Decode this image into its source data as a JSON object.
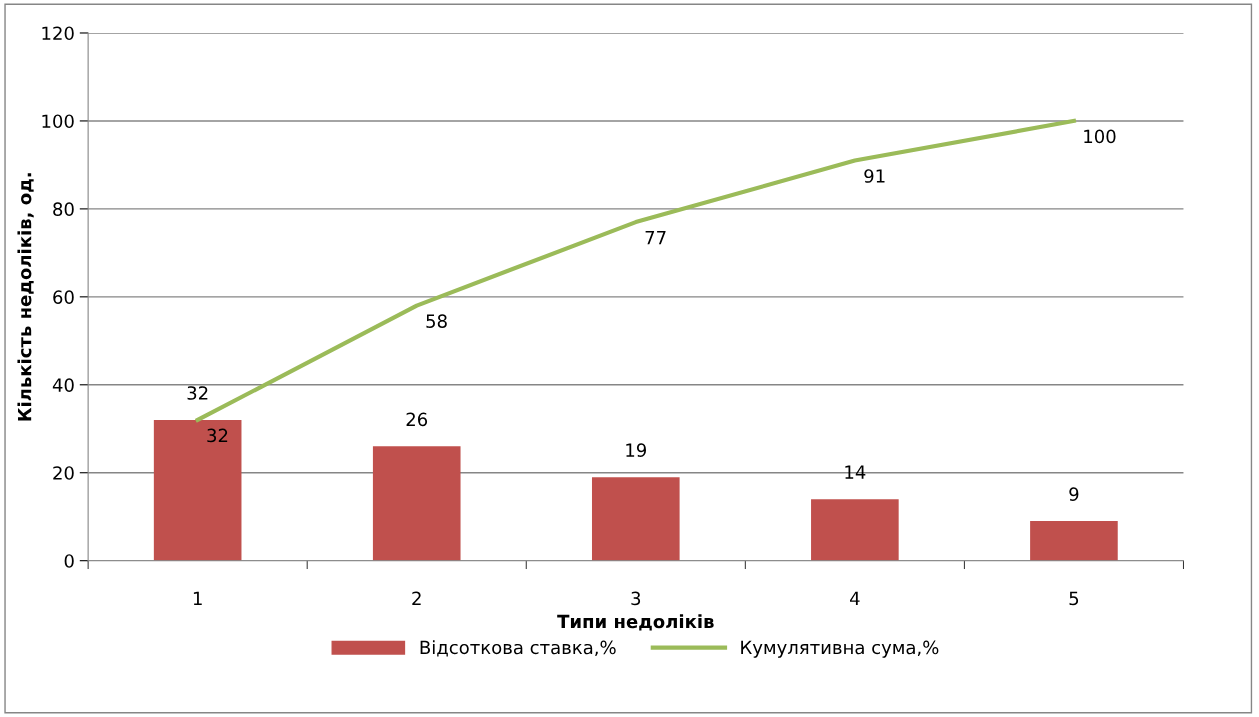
{
  "chart_data": {
    "type": "bar",
    "xlabel": "Типи недоліків",
    "ylabel": "Кількість недоліків, од.",
    "categories": [
      "1",
      "2",
      "3",
      "4",
      "5"
    ],
    "series": [
      {
        "name": "Відсоткова ставка,%",
        "color": "#c0504d",
        "values": [
          32,
          26,
          19,
          14,
          9
        ]
      },
      {
        "name": "Кумулятивна сума,%",
        "type": "line",
        "color": "#9bbb59",
        "values": [
          32,
          58,
          77,
          91,
          100
        ]
      }
    ],
    "ylim": [
      0,
      120
    ],
    "yticks": [
      0,
      20,
      40,
      60,
      80,
      100,
      120
    ],
    "grid": "y",
    "legend": "bottom",
    "data_labels": true,
    "marker": "none",
    "line_style": "solid"
  }
}
